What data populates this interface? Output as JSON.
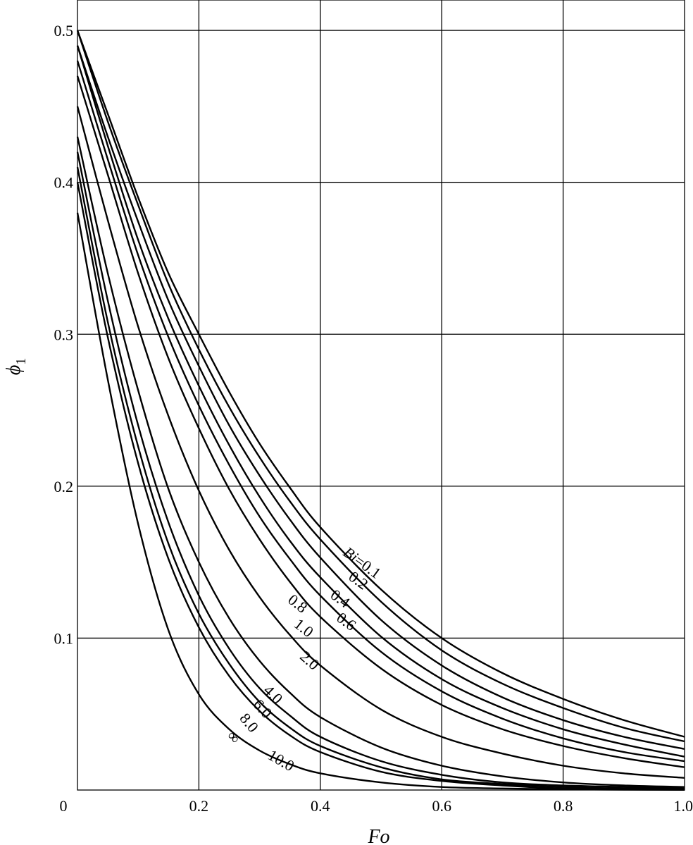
{
  "chart_data": {
    "type": "line",
    "title": "",
    "xlabel": "Fo",
    "ylabel": "ϕ",
    "ylabel_subscript": "1",
    "xlim": [
      0,
      1.0
    ],
    "ylim": [
      0,
      0.52
    ],
    "x_ticks": [
      {
        "value": 0,
        "label": "0"
      },
      {
        "value": 0.2,
        "label": "0.2"
      },
      {
        "value": 0.4,
        "label": "0.4"
      },
      {
        "value": 0.6,
        "label": "0.6"
      },
      {
        "value": 0.8,
        "label": "0.8"
      },
      {
        "value": 1.0,
        "label": "1.0"
      }
    ],
    "y_ticks": [
      {
        "value": 0.1,
        "label": "0.1"
      },
      {
        "value": 0.2,
        "label": "0.2"
      },
      {
        "value": 0.3,
        "label": "0.3"
      },
      {
        "value": 0.4,
        "label": "0.4"
      },
      {
        "value": 0.5,
        "label": "0.5"
      }
    ],
    "grid": true,
    "x": [
      0,
      0.05,
      0.1,
      0.15,
      0.2,
      0.25,
      0.3,
      0.35,
      0.4,
      0.5,
      0.6,
      0.7,
      0.8,
      0.9,
      1.0
    ],
    "series": [
      {
        "name": "Bi=0.1",
        "label": "Bi=0.1",
        "label_x": 0.436,
        "label_y": 0.155,
        "label_angle": 36,
        "values": [
          0.5,
          0.445,
          0.39,
          0.34,
          0.3,
          0.262,
          0.228,
          0.199,
          0.173,
          0.132,
          0.1,
          0.077,
          0.06,
          0.046,
          0.035
        ]
      },
      {
        "name": "0.2",
        "label": "0.2",
        "label_x": 0.445,
        "label_y": 0.139,
        "label_angle": 36,
        "values": [
          0.5,
          0.44,
          0.385,
          0.333,
          0.29,
          0.252,
          0.219,
          0.19,
          0.165,
          0.124,
          0.092,
          0.07,
          0.054,
          0.041,
          0.032
        ]
      },
      {
        "name": "0.4",
        "label": "0.4",
        "label_x": 0.415,
        "label_y": 0.127,
        "label_angle": 36,
        "values": [
          0.49,
          0.43,
          0.374,
          0.322,
          0.279,
          0.24,
          0.207,
          0.178,
          0.153,
          0.112,
          0.082,
          0.061,
          0.046,
          0.035,
          0.027
        ]
      },
      {
        "name": "0.6",
        "label": "0.6",
        "label_x": 0.425,
        "label_y": 0.112,
        "label_angle": 36,
        "values": [
          0.49,
          0.424,
          0.362,
          0.31,
          0.266,
          0.227,
          0.193,
          0.164,
          0.14,
          0.101,
          0.073,
          0.054,
          0.04,
          0.03,
          0.022
        ]
      },
      {
        "name": "0.8",
        "label": "0.8",
        "label_x": 0.345,
        "label_y": 0.124,
        "label_angle": 38,
        "values": [
          0.48,
          0.415,
          0.352,
          0.298,
          0.253,
          0.214,
          0.18,
          0.152,
          0.128,
          0.091,
          0.065,
          0.047,
          0.034,
          0.025,
          0.019
        ]
      },
      {
        "name": "1.0",
        "label": "1.0",
        "label_x": 0.355,
        "label_y": 0.108,
        "label_angle": 38,
        "values": [
          0.47,
          0.405,
          0.34,
          0.284,
          0.238,
          0.198,
          0.165,
          0.137,
          0.114,
          0.08,
          0.056,
          0.04,
          0.029,
          0.021,
          0.015
        ]
      },
      {
        "name": "2.0",
        "label": "2.0",
        "label_x": 0.365,
        "label_y": 0.087,
        "label_angle": 42,
        "values": [
          0.45,
          0.375,
          0.305,
          0.246,
          0.197,
          0.158,
          0.127,
          0.102,
          0.082,
          0.053,
          0.035,
          0.024,
          0.016,
          0.011,
          0.008
        ]
      },
      {
        "name": "4.0",
        "label": "4.0",
        "label_x": 0.305,
        "label_y": 0.065,
        "label_angle": 45,
        "values": [
          0.43,
          0.34,
          0.263,
          0.198,
          0.15,
          0.113,
          0.085,
          0.064,
          0.048,
          0.028,
          0.016,
          0.009,
          0.005,
          0.003,
          0.002
        ]
      },
      {
        "name": "6.0",
        "label": "6.0",
        "label_x": 0.288,
        "label_y": 0.056,
        "label_angle": 48,
        "values": [
          0.42,
          0.322,
          0.24,
          0.176,
          0.128,
          0.093,
          0.067,
          0.049,
          0.035,
          0.019,
          0.01,
          0.005,
          0.003,
          0.002,
          0.001
        ]
      },
      {
        "name": "8.0",
        "label": "8.0",
        "label_x": 0.266,
        "label_y": 0.047,
        "label_angle": 50,
        "values": [
          0.41,
          0.308,
          0.226,
          0.162,
          0.116,
          0.083,
          0.058,
          0.041,
          0.029,
          0.015,
          0.007,
          0.004,
          0.002,
          0.001,
          0.0005
        ]
      },
      {
        "name": "10.0",
        "label": "10.0",
        "label_x": 0.312,
        "label_y": 0.021,
        "label_angle": 30,
        "values": [
          0.4,
          0.298,
          0.215,
          0.152,
          0.107,
          0.075,
          0.052,
          0.036,
          0.025,
          0.012,
          0.006,
          0.003,
          0.001,
          0.0005,
          0.0002
        ]
      },
      {
        "name": "∞",
        "label": "∞",
        "label_x": 0.245,
        "label_y": 0.035,
        "label_angle": 45,
        "values": [
          0.38,
          0.27,
          0.175,
          0.105,
          0.063,
          0.04,
          0.026,
          0.017,
          0.011,
          0.005,
          0.002,
          0.001,
          0.0005,
          0.0002,
          0.0001
        ]
      }
    ]
  }
}
